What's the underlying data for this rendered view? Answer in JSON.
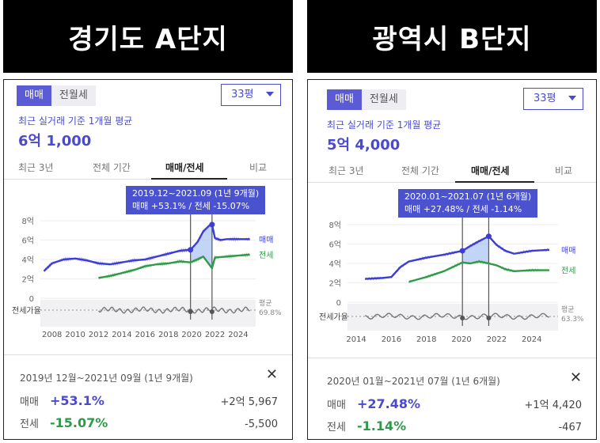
{
  "panels": [
    {
      "title": "경기도 A단지",
      "toggle": {
        "active": "매매",
        "inactive": "전월세"
      },
      "size": "33평",
      "subtitle": "최근 실거래 기준 1개월 평균",
      "price": "6억 1,000",
      "tabs": [
        "최근 3년",
        "전체 기간",
        "매매/전세",
        "비교"
      ],
      "tooltip": {
        "line1": "2019.12~2021.09 (1년 9개월)",
        "line2": "매매 +53.1%  /  전세 -15.07%"
      },
      "y_ticks": [
        "8억",
        "6억",
        "4억",
        "2억",
        "0"
      ],
      "x_ticks": [
        "2008",
        "2010",
        "2012",
        "2014",
        "2016",
        "2018",
        "2020",
        "2022",
        "2024"
      ],
      "legend": {
        "buy": "매매",
        "rent": "전세"
      },
      "ratio_label": "전세가율",
      "avg_label": "평균",
      "avg_value": "69.8%",
      "footer": {
        "period": "2019년 12월~2021년 09월 (1년 9개월)",
        "buy_label": "매매",
        "buy_pct": "+53.1%",
        "buy_amt": "+2억 5,967",
        "rent_label": "전세",
        "rent_pct": "-15.07%",
        "rent_amt": "-5,500"
      }
    },
    {
      "title": "광역시 B단지",
      "toggle": {
        "active": "매매",
        "inactive": "전월세"
      },
      "size": "33평",
      "subtitle": "최근 실거래 기준 1개월 평균",
      "price": "5억 4,000",
      "tabs": [
        "최근 3년",
        "전체 기간",
        "매매/전세",
        "비교"
      ],
      "tooltip": {
        "line1": "2020.01~2021.07 (1년 6개월)",
        "line2": "매매 +27.48%  /  전세 -1.14%"
      },
      "y_ticks": [
        "8억",
        "6억",
        "4억",
        "2억",
        "0"
      ],
      "x_ticks": [
        "2014",
        "2016",
        "2018",
        "2020",
        "2022",
        "2024"
      ],
      "legend": {
        "buy": "매매",
        "rent": "전세"
      },
      "ratio_label": "전세가율",
      "avg_label": "평균",
      "avg_value": "63.3%",
      "footer": {
        "period": "2020년 01월~2021년 07월 (1년 6개월)",
        "buy_label": "매매",
        "buy_pct": "+27.48%",
        "buy_amt": "+1억 4,420",
        "rent_label": "전세",
        "rent_pct": "-1.14%",
        "rent_amt": "-467"
      }
    }
  ],
  "colors": {
    "buy": "#3c3cd8",
    "rent": "#2f9a48",
    "ratio": "#777777",
    "accent": "#4a52cf"
  },
  "chart_data": [
    {
      "type": "line",
      "x_unit": "year",
      "ylim": [
        0,
        8
      ],
      "series": [
        {
          "name": "매매",
          "x": [
            2007.3,
            2008,
            2009,
            2010,
            2011,
            2012,
            2013,
            2014,
            2015,
            2016,
            2017,
            2018,
            2019,
            2019.9,
            2020.5,
            2021,
            2021.6,
            2021.75,
            2022,
            2022.5,
            2023,
            2024,
            2025
          ],
          "values": [
            2.8,
            3.6,
            4.0,
            4.1,
            3.9,
            3.6,
            3.5,
            3.7,
            3.9,
            4.0,
            4.3,
            4.6,
            4.9,
            5.0,
            5.8,
            6.9,
            7.6,
            7.6,
            6.2,
            6.0,
            6.1,
            6.1,
            6.1
          ]
        },
        {
          "name": "전세",
          "x": [
            2012,
            2013,
            2014,
            2015,
            2016,
            2017,
            2018,
            2019,
            2019.9,
            2020.5,
            2021,
            2021.75,
            2022,
            2023,
            2024,
            2025
          ],
          "values": [
            2.1,
            2.3,
            2.6,
            2.9,
            3.3,
            3.5,
            3.6,
            3.8,
            3.7,
            4.0,
            4.3,
            3.1,
            4.2,
            4.3,
            4.4,
            4.5
          ]
        }
      ]
    },
    {
      "type": "line",
      "x_unit": "year",
      "ylim": [
        0,
        8
      ],
      "series": [
        {
          "name": "매매",
          "x": [
            2014.5,
            2015.5,
            2016,
            2016.5,
            2017,
            2018,
            2019,
            2020.05,
            2020.5,
            2021,
            2021.55,
            2022,
            2022.5,
            2023,
            2024,
            2025
          ],
          "values": [
            2.4,
            2.5,
            2.6,
            3.6,
            4.2,
            4.6,
            4.9,
            5.3,
            5.8,
            6.3,
            6.8,
            5.9,
            5.3,
            5.0,
            5.3,
            5.4
          ]
        },
        {
          "name": "전세",
          "x": [
            2017,
            2018,
            2019,
            2020.05,
            2020.5,
            2021,
            2021.55,
            2022,
            2022.5,
            2023,
            2024,
            2025
          ],
          "values": [
            2.1,
            2.6,
            3.2,
            4.1,
            4.0,
            4.2,
            4.0,
            3.8,
            3.4,
            3.2,
            3.3,
            3.3
          ]
        }
      ]
    }
  ]
}
